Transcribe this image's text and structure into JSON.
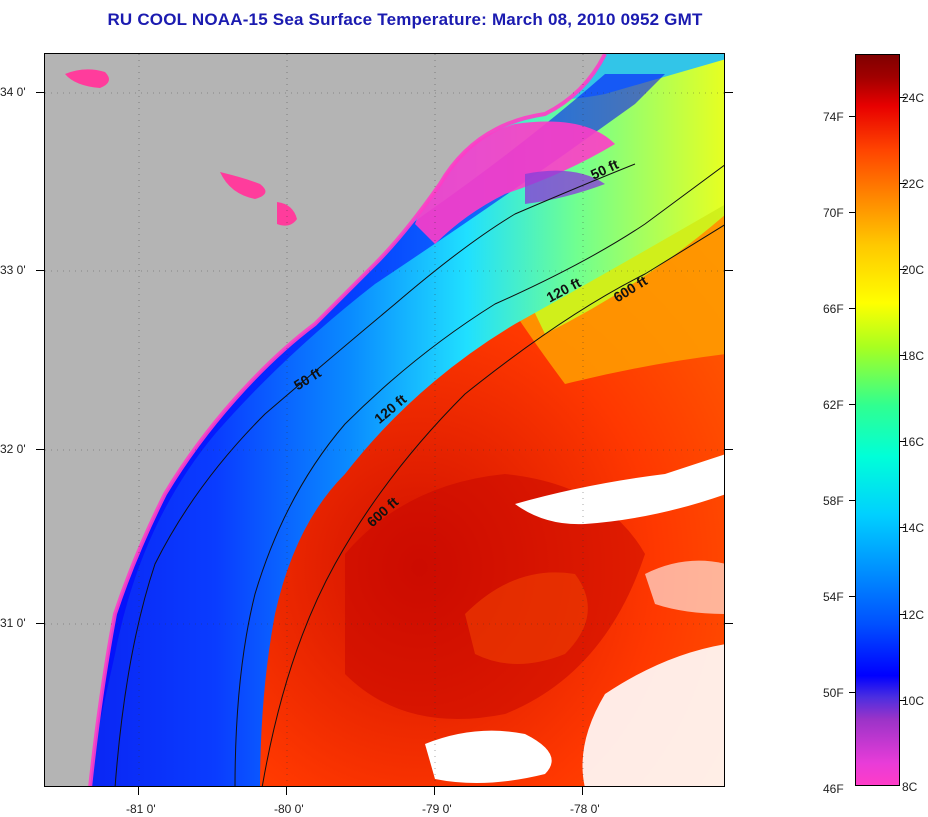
{
  "title": "RU COOL  NOAA-15  Sea Surface Temperature:  March 08, 2010 0952 GMT",
  "axes": {
    "lat_labels": [
      {
        "text": "34 0'",
        "value": 34.0
      },
      {
        "text": "33 0'",
        "value": 33.0
      },
      {
        "text": "32 0'",
        "value": 32.0
      },
      {
        "text": "31 0'",
        "value": 31.0
      }
    ],
    "lon_labels": [
      {
        "text": "-81 0'",
        "value": -81.0
      },
      {
        "text": "-80 0'",
        "value": -80.0
      },
      {
        "text": "-79 0'",
        "value": -79.0
      },
      {
        "text": "-78 0'",
        "value": -78.0
      }
    ]
  },
  "contours": {
    "labels": [
      "50 ft",
      "50 ft",
      "120 ft",
      "120 ft",
      "600 ft",
      "600 ft"
    ]
  },
  "colorbar": {
    "fahrenheit": [
      "74F",
      "70F",
      "66F",
      "62F",
      "58F",
      "54F",
      "50F",
      "46F"
    ],
    "celsius": [
      "24C",
      "22C",
      "20C",
      "18C",
      "16C",
      "14C",
      "12C",
      "10C",
      "8C"
    ],
    "min_c": 8,
    "max_c": 25.2
  },
  "colors": {
    "title": "#1b1bb0",
    "land": "#b4b4b4",
    "warm": "#e82800",
    "cold": "#0000ff"
  }
}
